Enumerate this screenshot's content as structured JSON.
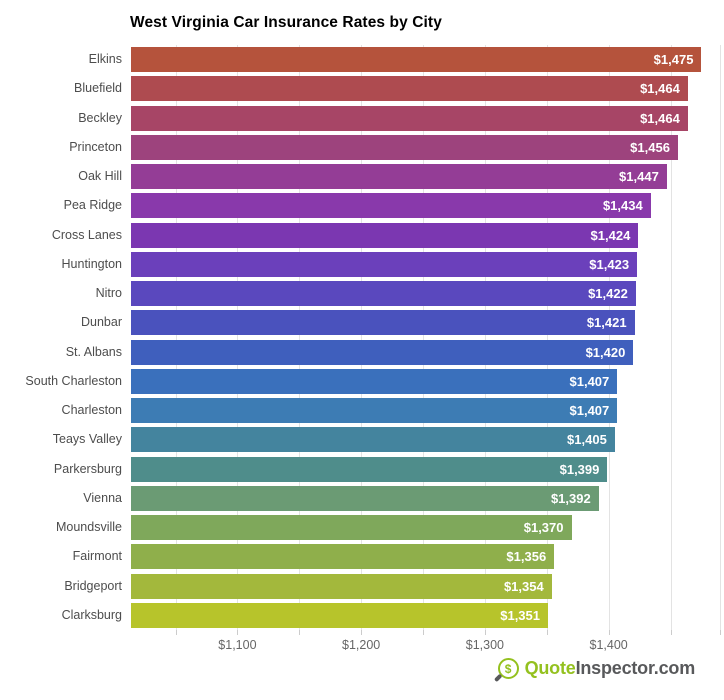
{
  "chart_data": {
    "type": "bar",
    "orientation": "horizontal",
    "title": "West Virginia Car Insurance Rates by City",
    "categories": [
      "Elkins",
      "Bluefield",
      "Beckley",
      "Princeton",
      "Oak Hill",
      "Pea Ridge",
      "Cross Lanes",
      "Huntington",
      "Nitro",
      "Dunbar",
      "St. Albans",
      "South Charleston",
      "Charleston",
      "Teays Valley",
      "Parkersburg",
      "Vienna",
      "Moundsville",
      "Fairmont",
      "Bridgeport",
      "Clarksburg"
    ],
    "values": [
      1475,
      1464,
      1464,
      1456,
      1447,
      1434,
      1424,
      1423,
      1422,
      1421,
      1420,
      1407,
      1407,
      1405,
      1399,
      1392,
      1370,
      1356,
      1354,
      1351
    ],
    "value_labels": [
      "$1,475",
      "$1,464",
      "$1,464",
      "$1,456",
      "$1,447",
      "$1,434",
      "$1,424",
      "$1,423",
      "$1,422",
      "$1,421",
      "$1,420",
      "$1,407",
      "$1,407",
      "$1,405",
      "$1,399",
      "$1,392",
      "$1,370",
      "$1,356",
      "$1,354",
      "$1,351"
    ],
    "bar_colors": [
      "#B5533C",
      "#AE4B50",
      "#A74566",
      "#9D437D",
      "#943D96",
      "#8939AB",
      "#7B37B1",
      "#6B40BB",
      "#5A48BE",
      "#4A52BD",
      "#3F5FBD",
      "#3A70BC",
      "#3D7CB4",
      "#44849E",
      "#4F8D8B",
      "#6B9B74",
      "#7FA85B",
      "#8FAF4B",
      "#A3B83C",
      "#B7C42B"
    ],
    "xlim": [
      1014,
      1490
    ],
    "x_ticks": [
      {
        "value": 1100,
        "label": "$1,100"
      },
      {
        "value": 1200,
        "label": "$1,200"
      },
      {
        "value": 1300,
        "label": "$1,300"
      },
      {
        "value": 1400,
        "label": "$1,400"
      }
    ],
    "gridlines": [
      1050,
      1100,
      1150,
      1200,
      1250,
      1300,
      1350,
      1400,
      1450,
      1490
    ],
    "grid": true,
    "legend": false,
    "xlabel": "",
    "ylabel": ""
  },
  "footer": {
    "brand_primary": "Quote",
    "brand_secondary": "Inspector.com",
    "icon": "magnifier-dollar-icon",
    "icon_symbol": "$",
    "accent_green": "#94C11F",
    "text_gray": "#58595B"
  },
  "colors": {
    "background": "#ffffff",
    "gridline": "#e3e3e3",
    "tick": "#cccccc",
    "axis_label": "#666666",
    "category_label": "#4d4d4d",
    "value_label": "#ffffff",
    "title": "#000000"
  }
}
